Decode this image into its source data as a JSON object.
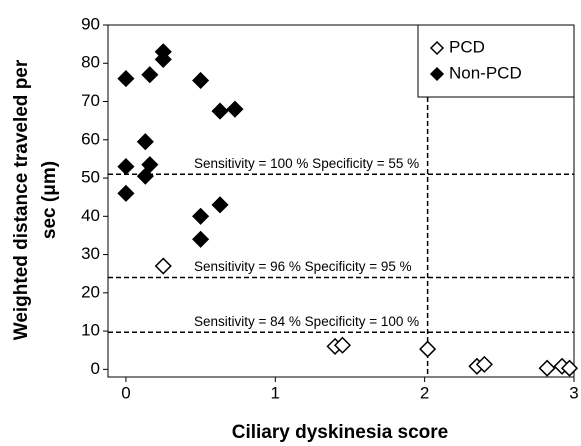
{
  "chart_data": {
    "type": "scatter",
    "xlabel": "Ciliary dyskinesia score",
    "ylabel": [
      "Weighted distance traveled per",
      "sec (μm)"
    ],
    "xlim": [
      -0.12,
      3.0
    ],
    "xticks": [
      0,
      1,
      2,
      3
    ],
    "ylim": [
      -2,
      90
    ],
    "yticks": [
      0,
      10,
      20,
      30,
      40,
      50,
      60,
      70,
      80,
      90
    ],
    "legend": "upper right",
    "series": [
      {
        "name": "PCD",
        "color": "#000000",
        "filled": false,
        "x": [
          0.25,
          1.4,
          1.45,
          2.02,
          2.35,
          2.4,
          2.82,
          2.92,
          2.97
        ],
        "values": [
          27,
          6,
          6.3,
          5.3,
          0.8,
          1.3,
          0.3,
          0.8,
          0.3
        ]
      },
      {
        "name": "Non-PCD",
        "color": "#000000",
        "filled": true,
        "x": [
          0,
          0,
          0,
          0.13,
          0.13,
          0.16,
          0.16,
          0.25,
          0.25,
          0.5,
          0.5,
          0.5,
          0.63,
          0.63,
          0.73
        ],
        "values": [
          76,
          53,
          46,
          59.5,
          50.5,
          77,
          53.5,
          83,
          81,
          75.5,
          40,
          34,
          67.5,
          43,
          68
        ]
      }
    ],
    "reference_lines": [
      {
        "y": 51,
        "label": "Sensitivity = 100 % Specificity = 55 %"
      },
      {
        "y": 24,
        "label": "Sensitivity = 96 % Specificity = 95 %"
      },
      {
        "y": 9.7,
        "label": "Sensitivity = 84 % Specificity = 100 %"
      }
    ],
    "vertical_line": 2.02
  }
}
